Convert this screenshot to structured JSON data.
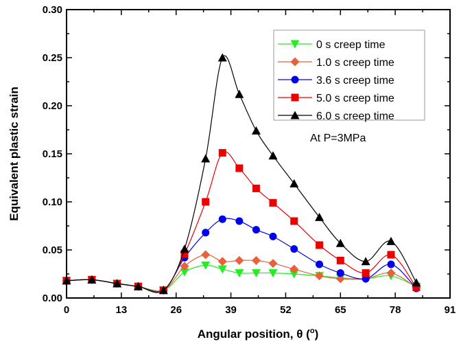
{
  "chart_data": {
    "type": "line",
    "title": "",
    "xlabel": "Angular position, θ (°)",
    "xlabel_main": "Angular position, θ (",
    "xlabel_sup": "o",
    "xlabel_end": ")",
    "ylabel": "Equivalent plastic strain",
    "xlim": [
      0,
      91
    ],
    "ylim": [
      0,
      0.3
    ],
    "xticks": [
      0,
      13,
      26,
      39,
      52,
      65,
      78,
      91
    ],
    "yticks": [
      "0.00",
      "0.05",
      "0.10",
      "0.15",
      "0.20",
      "0.25",
      "0.30"
    ],
    "annotation": "At P=3MPa",
    "legend_position": "top-right",
    "x": [
      0,
      6,
      12,
      17,
      23,
      28,
      33,
      37,
      41,
      45,
      49,
      54,
      60,
      65,
      71,
      77,
      83
    ],
    "series": [
      {
        "name": "0 s creep time",
        "color": "#22ee22",
        "marker": "triangle-down",
        "values": [
          0.018,
          0.019,
          0.015,
          0.012,
          0.008,
          0.027,
          0.034,
          0.03,
          0.026,
          0.026,
          0.026,
          0.025,
          0.023,
          0.021,
          0.02,
          0.023,
          0.012
        ]
      },
      {
        "name": "1.0 s creep time",
        "color": "#e8603c",
        "marker": "diamond",
        "values": [
          0.018,
          0.019,
          0.015,
          0.012,
          0.008,
          0.033,
          0.045,
          0.038,
          0.039,
          0.039,
          0.036,
          0.03,
          0.023,
          0.02,
          0.02,
          0.026,
          0.011
        ]
      },
      {
        "name": "3.6 s creep time",
        "color": "#0000ee",
        "marker": "circle",
        "values": [
          0.018,
          0.019,
          0.015,
          0.012,
          0.008,
          0.042,
          0.068,
          0.082,
          0.08,
          0.071,
          0.064,
          0.051,
          0.035,
          0.026,
          0.02,
          0.035,
          0.01
        ]
      },
      {
        "name": "5.0 s creep time",
        "color": "#ee0000",
        "marker": "square",
        "values": [
          0.018,
          0.019,
          0.015,
          0.012,
          0.008,
          0.046,
          0.1,
          0.151,
          0.135,
          0.114,
          0.099,
          0.08,
          0.055,
          0.039,
          0.026,
          0.045,
          0.011
        ]
      },
      {
        "name": "6.0 s creep time",
        "color": "#000000",
        "marker": "triangle-up",
        "values": [
          0.018,
          0.019,
          0.015,
          0.012,
          0.008,
          0.051,
          0.145,
          0.25,
          0.212,
          0.174,
          0.148,
          0.119,
          0.084,
          0.057,
          0.038,
          0.059,
          0.016
        ]
      }
    ]
  }
}
